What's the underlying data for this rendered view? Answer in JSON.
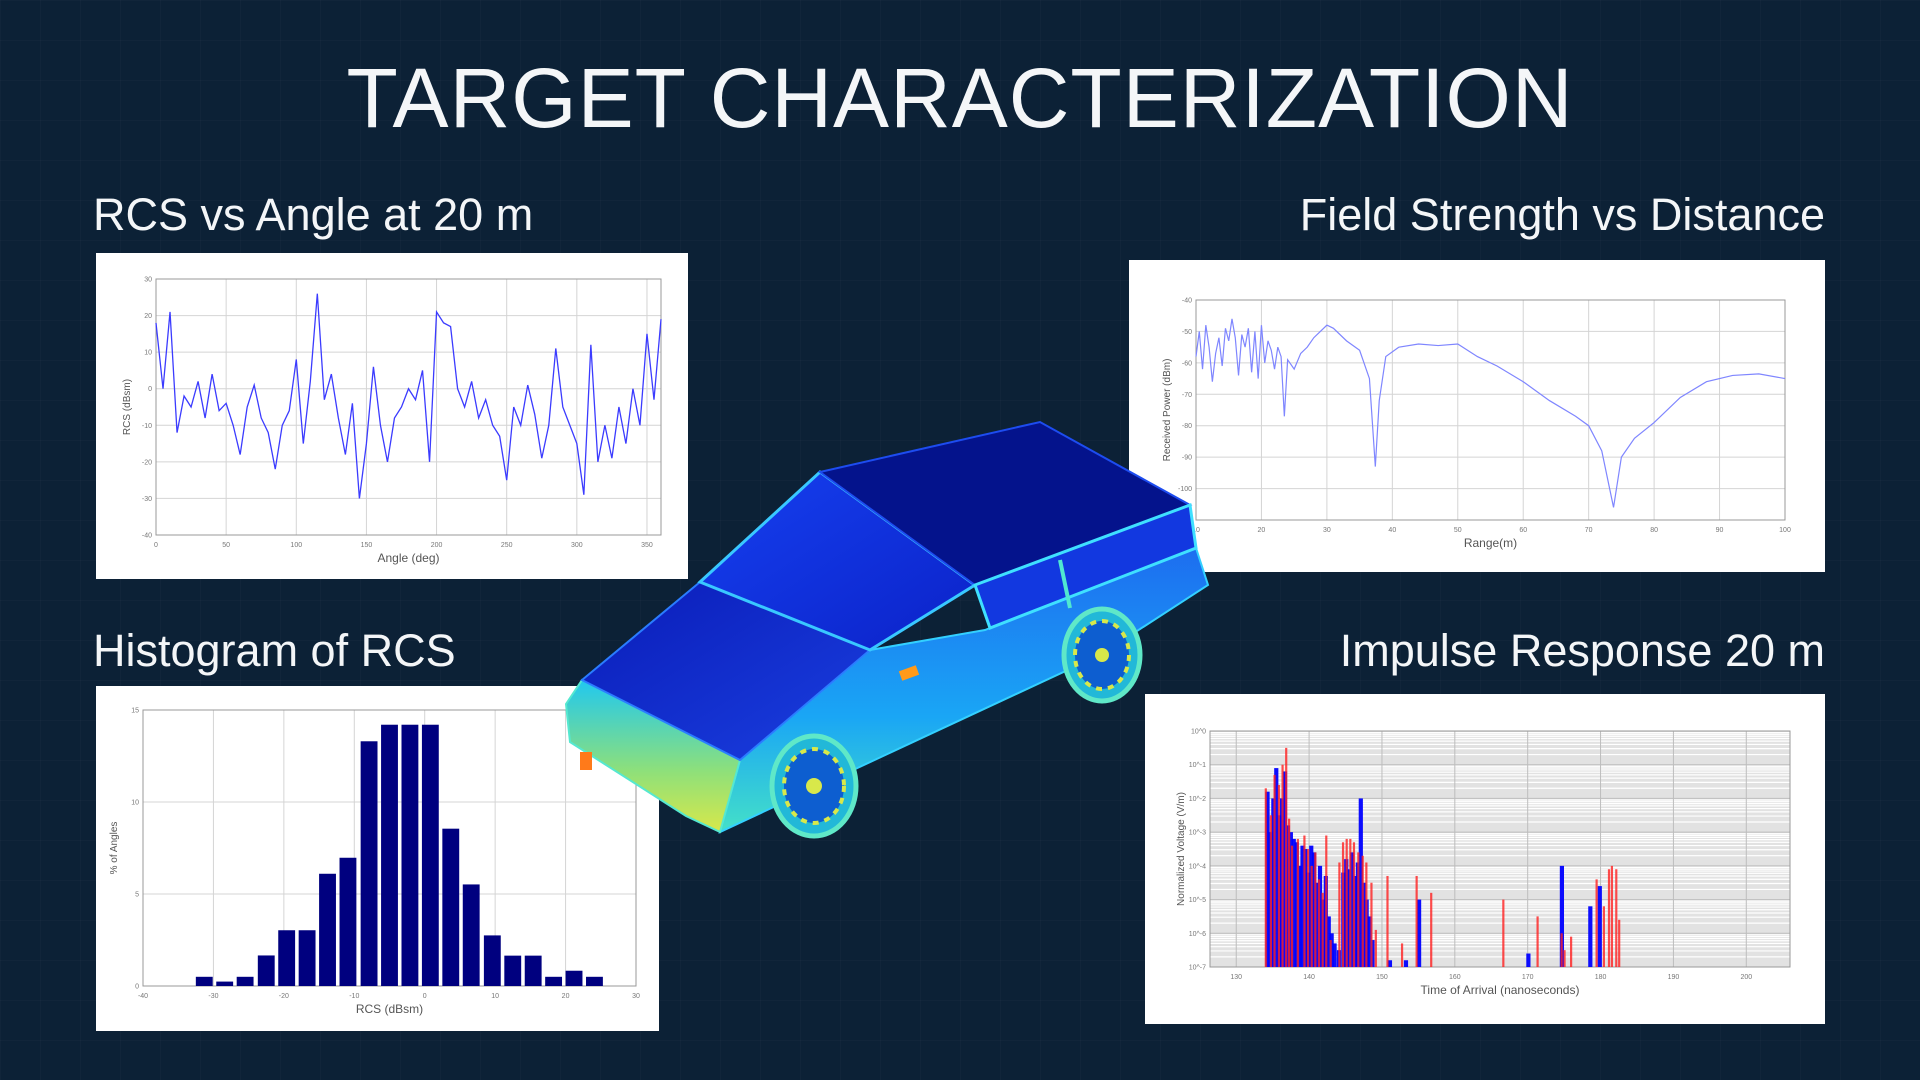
{
  "slide": {
    "title": "TARGET CHARACTERIZATION",
    "background_color": "#0c2136"
  },
  "panels": {
    "rcs_angle": {
      "label": "RCS vs Angle at 20 m"
    },
    "field_strength": {
      "label": "Field Strength vs Distance"
    },
    "histogram": {
      "label": "Histogram of RCS"
    },
    "impulse": {
      "label": "Impulse Response 20 m"
    }
  },
  "center_image": {
    "icon": "car-rcs-heatmap-render",
    "colors": [
      "#00008b",
      "#1f3fe0",
      "#19b6ff",
      "#4fe3c4",
      "#d8e84a",
      "#ff8c1a"
    ]
  },
  "chart_data": [
    {
      "id": "rcs_angle",
      "type": "line",
      "xlabel": "Angle (deg)",
      "ylabel": "RCS (dBsm)",
      "xlim": [
        0,
        360
      ],
      "ylim": [
        -40,
        30
      ],
      "xticks": [
        0,
        50,
        100,
        150,
        200,
        250,
        300,
        350
      ],
      "yticks": [
        -40,
        -30,
        -20,
        -10,
        0,
        10,
        20,
        30
      ],
      "grid": true,
      "color": "#3b3bff",
      "x": [
        0,
        5,
        10,
        15,
        20,
        25,
        30,
        35,
        40,
        45,
        50,
        55,
        60,
        65,
        70,
        75,
        80,
        85,
        90,
        95,
        100,
        105,
        110,
        115,
        120,
        125,
        130,
        135,
        140,
        145,
        150,
        155,
        160,
        165,
        170,
        175,
        180,
        185,
        190,
        195,
        200,
        205,
        210,
        215,
        220,
        225,
        230,
        235,
        240,
        245,
        250,
        255,
        260,
        265,
        270,
        275,
        280,
        285,
        290,
        295,
        300,
        305,
        310,
        315,
        320,
        325,
        330,
        335,
        340,
        345,
        350,
        355,
        360
      ],
      "y": [
        18,
        0,
        21,
        -12,
        -2,
        -5,
        2,
        -8,
        4,
        -6,
        -4,
        -10,
        -18,
        -5,
        1,
        -8,
        -12,
        -22,
        -10,
        -6,
        8,
        -15,
        2,
        26,
        -3,
        4,
        -8,
        -18,
        -4,
        -30,
        -15,
        6,
        -10,
        -20,
        -8,
        -5,
        0,
        -3,
        5,
        -20,
        21,
        18,
        17,
        0,
        -5,
        2,
        -8,
        -3,
        -10,
        -13,
        -25,
        -5,
        -10,
        1,
        -7,
        -19,
        -10,
        11,
        -5,
        -10,
        -15,
        -29,
        12,
        -20,
        -10,
        -19,
        -5,
        -15,
        0,
        -10,
        15,
        -3,
        19
      ]
    },
    {
      "id": "field_strength",
      "type": "line",
      "xlabel": "Range(m)",
      "ylabel": "Received Power (dBm)",
      "xlim": [
        10,
        100
      ],
      "ylim": [
        -110,
        -40
      ],
      "xticks": [
        10,
        20,
        30,
        40,
        50,
        60,
        70,
        80,
        90,
        100
      ],
      "yticks": [
        -110,
        -100,
        -90,
        -80,
        -70,
        -60,
        -50,
        -40
      ],
      "grid": true,
      "color": "#7f86ff",
      "points": [
        [
          10,
          -58
        ],
        [
          10.5,
          -50
        ],
        [
          11,
          -62
        ],
        [
          11.5,
          -48
        ],
        [
          12,
          -55
        ],
        [
          12.5,
          -66
        ],
        [
          13,
          -57
        ],
        [
          13.5,
          -52
        ],
        [
          14,
          -61
        ],
        [
          14.5,
          -49
        ],
        [
          15,
          -53
        ],
        [
          15.5,
          -46
        ],
        [
          16,
          -52
        ],
        [
          16.5,
          -64
        ],
        [
          17,
          -51
        ],
        [
          17.5,
          -55
        ],
        [
          18,
          -49
        ],
        [
          18.5,
          -63
        ],
        [
          19,
          -50
        ],
        [
          19.5,
          -65
        ],
        [
          20,
          -48
        ],
        [
          20.5,
          -60
        ],
        [
          21,
          -53
        ],
        [
          21.5,
          -56
        ],
        [
          22,
          -62
        ],
        [
          22.5,
          -55
        ],
        [
          23,
          -58
        ],
        [
          23.5,
          -77
        ],
        [
          24,
          -59
        ],
        [
          25,
          -62
        ],
        [
          26,
          -57
        ],
        [
          27,
          -55
        ],
        [
          28,
          -52
        ],
        [
          30,
          -48
        ],
        [
          31,
          -49
        ],
        [
          33,
          -53
        ],
        [
          35,
          -56
        ],
        [
          36.5,
          -65
        ],
        [
          37.4,
          -93
        ],
        [
          38,
          -72
        ],
        [
          39,
          -58
        ],
        [
          41,
          -55
        ],
        [
          44,
          -54
        ],
        [
          47,
          -54.5
        ],
        [
          50,
          -54
        ],
        [
          53,
          -58
        ],
        [
          56,
          -61
        ],
        [
          60,
          -66
        ],
        [
          64,
          -72
        ],
        [
          68,
          -77
        ],
        [
          70,
          -80
        ],
        [
          72,
          -88
        ],
        [
          73.8,
          -106
        ],
        [
          75,
          -90
        ],
        [
          77,
          -84
        ],
        [
          80,
          -79
        ],
        [
          84,
          -71
        ],
        [
          88,
          -66
        ],
        [
          92,
          -64
        ],
        [
          96,
          -63.5
        ],
        [
          100,
          -65
        ]
      ]
    },
    {
      "id": "histogram",
      "type": "bar",
      "xlabel": "RCS (dBsm)",
      "ylabel": "% of Angles",
      "xlim": [
        -40,
        30
      ],
      "ylim": [
        0,
        15
      ],
      "xticks": [
        -40,
        -30,
        -20,
        -10,
        0,
        10,
        20,
        30
      ],
      "yticks": [
        0,
        5,
        10,
        15
      ],
      "grid": true,
      "color": "#00007f",
      "bin_width": 2.92,
      "bin_centers": [
        -31.3,
        -28.4,
        -25.5,
        -22.5,
        -19.6,
        -16.7,
        -13.8,
        -10.9,
        -7.9,
        -5.0,
        -2.1,
        0.8,
        3.7,
        6.6,
        9.6,
        12.5,
        15.4,
        18.3,
        21.2,
        24.1
      ],
      "values": [
        0.5,
        0.24,
        0.5,
        1.66,
        3.03,
        3.03,
        6.1,
        6.97,
        13.3,
        14.2,
        14.2,
        14.2,
        8.55,
        5.52,
        2.75,
        1.65,
        1.65,
        0.5,
        0.83,
        0.5
      ]
    },
    {
      "id": "impulse",
      "type": "bar",
      "xlabel": "Time of Arrival (nanoseconds)",
      "ylabel": "Normalized Voltage (V/m)",
      "xlim": [
        126.4,
        206
      ],
      "ylim_log10": [
        -7,
        0
      ],
      "yscale": "log",
      "xticks": [
        130,
        140,
        150,
        160,
        170,
        180,
        190,
        200
      ],
      "yticks": [
        "10^-7",
        "10^-6",
        "10^-5",
        "10^-4",
        "10^-3",
        "10^-2",
        "10^-1",
        "10^0"
      ],
      "grid": true,
      "series": [
        {
          "color": "#0000ff",
          "points": [
            [
              134.2,
              -1.8
            ],
            [
              134.6,
              -3
            ],
            [
              135,
              -2
            ],
            [
              135.4,
              -1.1
            ],
            [
              135.8,
              -2.5
            ],
            [
              136.2,
              -2.0
            ],
            [
              136.6,
              -1.2
            ],
            [
              137,
              -2.8
            ],
            [
              137.4,
              -3.0
            ],
            [
              137.8,
              -3.2
            ],
            [
              138.2,
              -3.3
            ],
            [
              138.6,
              -4.0
            ],
            [
              139,
              -3.4
            ],
            [
              139.4,
              -3.5
            ],
            [
              139.8,
              -4.2
            ],
            [
              140.2,
              -3.4
            ],
            [
              140.6,
              -3.6
            ],
            [
              141,
              -4.5
            ],
            [
              141.4,
              -4.0
            ],
            [
              141.8,
              -5.0
            ],
            [
              142.2,
              -4.3
            ],
            [
              142.6,
              -5.5
            ],
            [
              143,
              -6.0
            ],
            [
              143.4,
              -6.3
            ],
            [
              144,
              -6.5
            ],
            [
              144.6,
              -4.2
            ],
            [
              145,
              -3.8
            ],
            [
              145.4,
              -4.1
            ],
            [
              145.8,
              -3.6
            ],
            [
              146.2,
              -4.3
            ],
            [
              146.6,
              -3.9
            ],
            [
              147,
              -2.0
            ],
            [
              147.4,
              -4.5
            ],
            [
              147.8,
              -5.0
            ],
            [
              148.2,
              -5.5
            ],
            [
              148.6,
              -6.2
            ],
            [
              151,
              -6.8
            ],
            [
              153.2,
              -6.8
            ],
            [
              155,
              -5.0
            ],
            [
              170,
              -6.6
            ],
            [
              174.6,
              -4.0
            ],
            [
              178.5,
              -5.2
            ],
            [
              179.8,
              -4.6
            ]
          ]
        },
        {
          "color": "#ff2020",
          "points": [
            [
              134.1,
              -1.7
            ],
            [
              134.8,
              -2.5
            ],
            [
              135.3,
              -1.3
            ],
            [
              135.9,
              -1.6
            ],
            [
              136.4,
              -1.0
            ],
            [
              136.9,
              -0.5
            ],
            [
              137.3,
              -2.6
            ],
            [
              137.7,
              -3.4
            ],
            [
              138.5,
              -3.2
            ],
            [
              139.4,
              -3.1
            ],
            [
              139.9,
              -3.5
            ],
            [
              140.4,
              -4.0
            ],
            [
              140.9,
              -3.6
            ],
            [
              141.4,
              -4.4
            ],
            [
              141.9,
              -4.8
            ],
            [
              142.4,
              -3.1
            ],
            [
              143,
              -6.2
            ],
            [
              144.2,
              -3.9
            ],
            [
              144.7,
              -3.3
            ],
            [
              145.2,
              -3.2
            ],
            [
              145.7,
              -3.2
            ],
            [
              146.2,
              -3.3
            ],
            [
              146.8,
              -3.6
            ],
            [
              147.4,
              -3.7
            ],
            [
              147.9,
              -3.9
            ],
            [
              148.6,
              -4.5
            ],
            [
              149.2,
              -5.9
            ],
            [
              150.8,
              -4.3
            ],
            [
              152.8,
              -6.3
            ],
            [
              154.8,
              -4.3
            ],
            [
              156.8,
              -4.8
            ],
            [
              166.7,
              -5.0
            ],
            [
              171.4,
              -5.5
            ],
            [
              174.7,
              -6.0
            ],
            [
              175.1,
              -6.5
            ],
            [
              176,
              -6.1
            ],
            [
              179.5,
              -4.4
            ],
            [
              180.5,
              -5.2
            ],
            [
              181.2,
              -4.1
            ],
            [
              181.6,
              -4.0
            ],
            [
              182.2,
              -4.1
            ],
            [
              182.6,
              -5.6
            ]
          ]
        }
      ]
    }
  ]
}
